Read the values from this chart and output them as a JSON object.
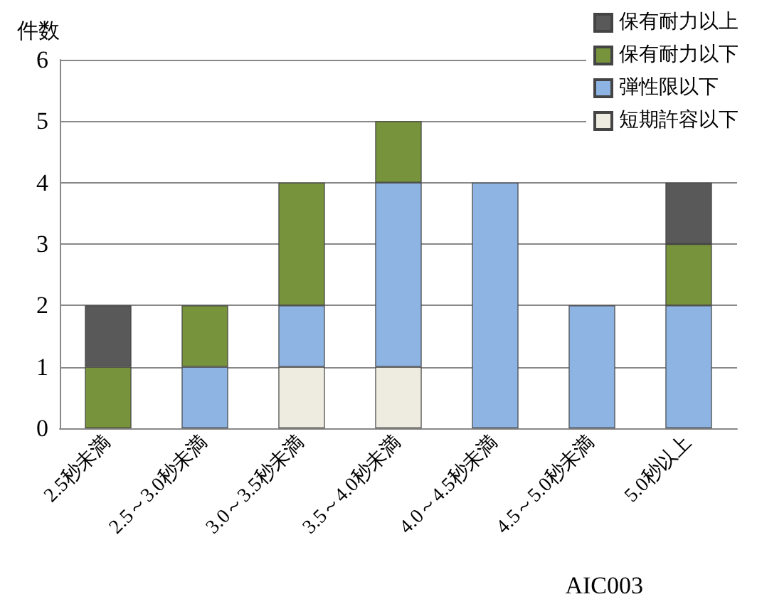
{
  "chart_data": {
    "type": "bar",
    "stacked": true,
    "ylabel": "件数",
    "categories": [
      "2.5秒未満",
      "2.5～3.0秒未満",
      "3.0～3.5秒未満",
      "3.5～4.0秒未満",
      "4.0～4.5秒未満",
      "4.5～5.0秒未満",
      "5.0秒以上"
    ],
    "series": [
      {
        "name": "短期許容以下",
        "color": "#eeece1",
        "values": [
          0,
          0,
          1,
          1,
          0,
          0,
          0
        ]
      },
      {
        "name": "弾性限以下",
        "color": "#8db4e2",
        "values": [
          0,
          1,
          1,
          3,
          4,
          2,
          2
        ]
      },
      {
        "name": "保有耐力以下",
        "color": "#77933c",
        "values": [
          1,
          1,
          2,
          1,
          0,
          0,
          1
        ]
      },
      {
        "name": "保有耐力以上",
        "color": "#595959",
        "values": [
          1,
          0,
          0,
          0,
          0,
          0,
          1
        ]
      }
    ],
    "ylim": [
      0,
      6
    ],
    "yticks": [
      0,
      1,
      2,
      3,
      4,
      5,
      6
    ],
    "grid": "y",
    "legend": "top right",
    "annotations": [
      "AIC003"
    ]
  }
}
